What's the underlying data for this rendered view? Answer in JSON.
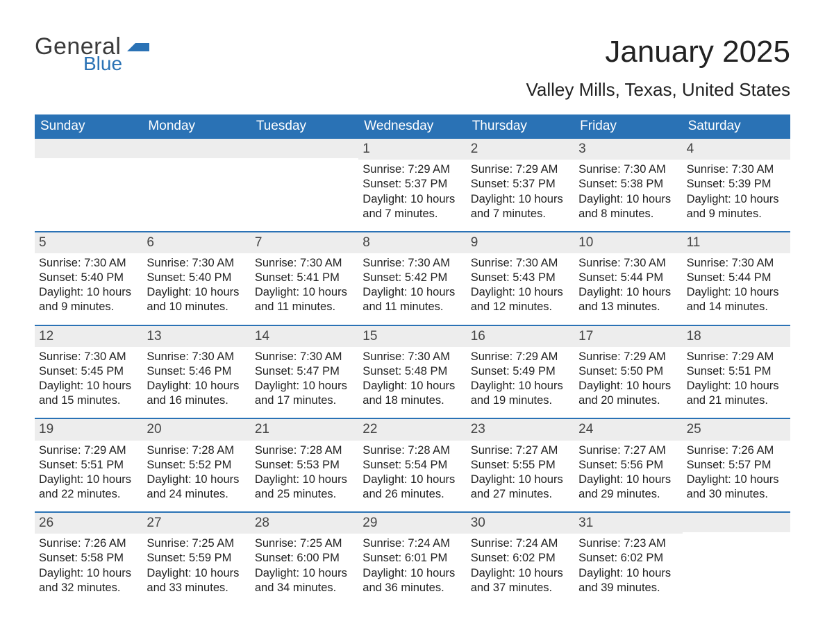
{
  "logo": {
    "general": "General",
    "blue": "Blue",
    "shape_color": "#2a72b5"
  },
  "header": {
    "month_title": "January 2025",
    "location": "Valley Mills, Texas, United States"
  },
  "calendar": {
    "type": "table",
    "columns": 7,
    "header_bg": "#2a72b5",
    "header_fg": "#ffffff",
    "daynum_bg": "#ededed",
    "week_border": "#2a72b5",
    "text_color": "#222222",
    "font_size_body": 16.5,
    "font_size_daynum": 19,
    "font_size_dow": 19,
    "days_of_week": [
      "Sunday",
      "Monday",
      "Tuesday",
      "Wednesday",
      "Thursday",
      "Friday",
      "Saturday"
    ],
    "weeks": [
      [
        null,
        null,
        null,
        {
          "n": "1",
          "sr": "Sunrise: 7:29 AM",
          "ss": "Sunset: 5:37 PM",
          "dl": "Daylight: 10 hours and 7 minutes."
        },
        {
          "n": "2",
          "sr": "Sunrise: 7:29 AM",
          "ss": "Sunset: 5:37 PM",
          "dl": "Daylight: 10 hours and 7 minutes."
        },
        {
          "n": "3",
          "sr": "Sunrise: 7:30 AM",
          "ss": "Sunset: 5:38 PM",
          "dl": "Daylight: 10 hours and 8 minutes."
        },
        {
          "n": "4",
          "sr": "Sunrise: 7:30 AM",
          "ss": "Sunset: 5:39 PM",
          "dl": "Daylight: 10 hours and 9 minutes."
        }
      ],
      [
        {
          "n": "5",
          "sr": "Sunrise: 7:30 AM",
          "ss": "Sunset: 5:40 PM",
          "dl": "Daylight: 10 hours and 9 minutes."
        },
        {
          "n": "6",
          "sr": "Sunrise: 7:30 AM",
          "ss": "Sunset: 5:40 PM",
          "dl": "Daylight: 10 hours and 10 minutes."
        },
        {
          "n": "7",
          "sr": "Sunrise: 7:30 AM",
          "ss": "Sunset: 5:41 PM",
          "dl": "Daylight: 10 hours and 11 minutes."
        },
        {
          "n": "8",
          "sr": "Sunrise: 7:30 AM",
          "ss": "Sunset: 5:42 PM",
          "dl": "Daylight: 10 hours and 11 minutes."
        },
        {
          "n": "9",
          "sr": "Sunrise: 7:30 AM",
          "ss": "Sunset: 5:43 PM",
          "dl": "Daylight: 10 hours and 12 minutes."
        },
        {
          "n": "10",
          "sr": "Sunrise: 7:30 AM",
          "ss": "Sunset: 5:44 PM",
          "dl": "Daylight: 10 hours and 13 minutes."
        },
        {
          "n": "11",
          "sr": "Sunrise: 7:30 AM",
          "ss": "Sunset: 5:44 PM",
          "dl": "Daylight: 10 hours and 14 minutes."
        }
      ],
      [
        {
          "n": "12",
          "sr": "Sunrise: 7:30 AM",
          "ss": "Sunset: 5:45 PM",
          "dl": "Daylight: 10 hours and 15 minutes."
        },
        {
          "n": "13",
          "sr": "Sunrise: 7:30 AM",
          "ss": "Sunset: 5:46 PM",
          "dl": "Daylight: 10 hours and 16 minutes."
        },
        {
          "n": "14",
          "sr": "Sunrise: 7:30 AM",
          "ss": "Sunset: 5:47 PM",
          "dl": "Daylight: 10 hours and 17 minutes."
        },
        {
          "n": "15",
          "sr": "Sunrise: 7:30 AM",
          "ss": "Sunset: 5:48 PM",
          "dl": "Daylight: 10 hours and 18 minutes."
        },
        {
          "n": "16",
          "sr": "Sunrise: 7:29 AM",
          "ss": "Sunset: 5:49 PM",
          "dl": "Daylight: 10 hours and 19 minutes."
        },
        {
          "n": "17",
          "sr": "Sunrise: 7:29 AM",
          "ss": "Sunset: 5:50 PM",
          "dl": "Daylight: 10 hours and 20 minutes."
        },
        {
          "n": "18",
          "sr": "Sunrise: 7:29 AM",
          "ss": "Sunset: 5:51 PM",
          "dl": "Daylight: 10 hours and 21 minutes."
        }
      ],
      [
        {
          "n": "19",
          "sr": "Sunrise: 7:29 AM",
          "ss": "Sunset: 5:51 PM",
          "dl": "Daylight: 10 hours and 22 minutes."
        },
        {
          "n": "20",
          "sr": "Sunrise: 7:28 AM",
          "ss": "Sunset: 5:52 PM",
          "dl": "Daylight: 10 hours and 24 minutes."
        },
        {
          "n": "21",
          "sr": "Sunrise: 7:28 AM",
          "ss": "Sunset: 5:53 PM",
          "dl": "Daylight: 10 hours and 25 minutes."
        },
        {
          "n": "22",
          "sr": "Sunrise: 7:28 AM",
          "ss": "Sunset: 5:54 PM",
          "dl": "Daylight: 10 hours and 26 minutes."
        },
        {
          "n": "23",
          "sr": "Sunrise: 7:27 AM",
          "ss": "Sunset: 5:55 PM",
          "dl": "Daylight: 10 hours and 27 minutes."
        },
        {
          "n": "24",
          "sr": "Sunrise: 7:27 AM",
          "ss": "Sunset: 5:56 PM",
          "dl": "Daylight: 10 hours and 29 minutes."
        },
        {
          "n": "25",
          "sr": "Sunrise: 7:26 AM",
          "ss": "Sunset: 5:57 PM",
          "dl": "Daylight: 10 hours and 30 minutes."
        }
      ],
      [
        {
          "n": "26",
          "sr": "Sunrise: 7:26 AM",
          "ss": "Sunset: 5:58 PM",
          "dl": "Daylight: 10 hours and 32 minutes."
        },
        {
          "n": "27",
          "sr": "Sunrise: 7:25 AM",
          "ss": "Sunset: 5:59 PM",
          "dl": "Daylight: 10 hours and 33 minutes."
        },
        {
          "n": "28",
          "sr": "Sunrise: 7:25 AM",
          "ss": "Sunset: 6:00 PM",
          "dl": "Daylight: 10 hours and 34 minutes."
        },
        {
          "n": "29",
          "sr": "Sunrise: 7:24 AM",
          "ss": "Sunset: 6:01 PM",
          "dl": "Daylight: 10 hours and 36 minutes."
        },
        {
          "n": "30",
          "sr": "Sunrise: 7:24 AM",
          "ss": "Sunset: 6:02 PM",
          "dl": "Daylight: 10 hours and 37 minutes."
        },
        {
          "n": "31",
          "sr": "Sunrise: 7:23 AM",
          "ss": "Sunset: 6:02 PM",
          "dl": "Daylight: 10 hours and 39 minutes."
        },
        null
      ]
    ]
  }
}
